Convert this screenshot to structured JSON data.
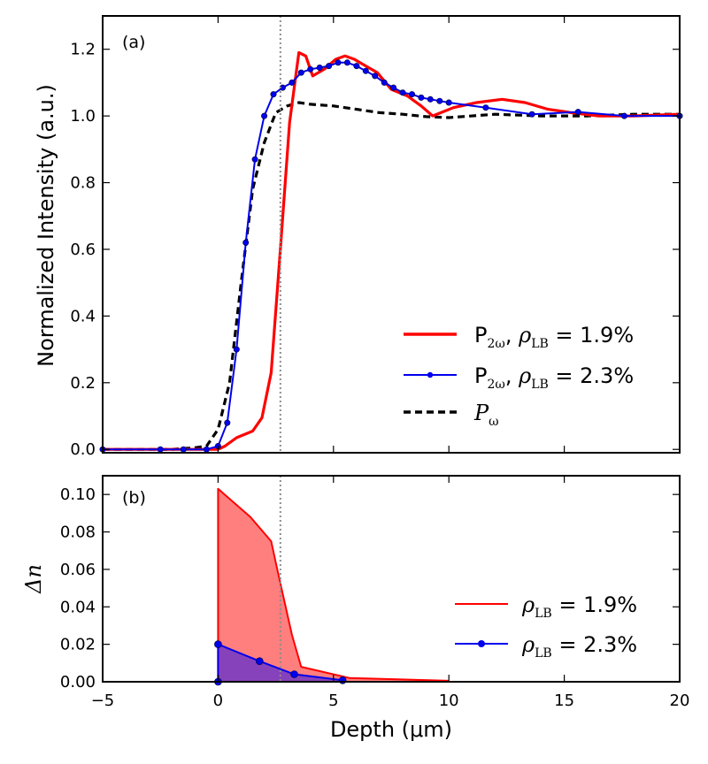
{
  "figure": {
    "shared_xlabel": "Depth (μm)",
    "reference_line_depth": 2.7
  },
  "chart_data": [
    {
      "type": "line",
      "panel_label": "(a)",
      "ylabel": "Normalized Intensity (a.u.)",
      "xlim": [
        -5,
        20
      ],
      "ylim": [
        -0.01,
        1.3
      ],
      "xticks": [
        -5,
        0,
        5,
        10,
        15,
        20
      ],
      "yticks": [
        0.0,
        0.2,
        0.4,
        0.6,
        0.8,
        1.0,
        1.2
      ],
      "ytick_labels": [
        "0.0",
        "0.2",
        "0.4",
        "0.6",
        "0.8",
        "1.0",
        "1.2"
      ],
      "legend_position": "lower-right",
      "series": [
        {
          "name": "P2ω, ρLB = 1.9%",
          "legend": {
            "main": "P",
            "sub": "2ω",
            "sep": ", ",
            "rho": "ρ",
            "rho_sub": "LB",
            "rest": " = 1.9%"
          },
          "color": "#ff0000",
          "style": "solid-thick",
          "x": [
            -5,
            -2,
            -0.5,
            0,
            0.3,
            0.8,
            1.5,
            1.9,
            2.3,
            2.7,
            3.1,
            3.5,
            3.8,
            4.1,
            4.6,
            5.1,
            5.5,
            5.9,
            6.4,
            6.9,
            7.5,
            8.2,
            8.8,
            9.3,
            10.2,
            11.2,
            12.3,
            13.3,
            14.3,
            15.3,
            16.5,
            18,
            20
          ],
          "y": [
            0,
            0,
            0,
            0,
            0.01,
            0.035,
            0.055,
            0.095,
            0.23,
            0.6,
            0.98,
            1.19,
            1.18,
            1.12,
            1.14,
            1.17,
            1.18,
            1.17,
            1.15,
            1.13,
            1.08,
            1.06,
            1.03,
            1.0,
            1.025,
            1.04,
            1.05,
            1.04,
            1.02,
            1.01,
            1.0,
            1.0,
            1.005
          ]
        },
        {
          "name": "P2ω, ρLB = 2.3%",
          "legend": {
            "main": "P",
            "sub": "2ω",
            "sep": ", ",
            "rho": "ρ",
            "rho_sub": "LB",
            "rest": " = 2.3%"
          },
          "color": "#0000ee",
          "style": "solid-markers",
          "x": [
            -5,
            -2.5,
            -1.5,
            -0.5,
            0,
            0.4,
            0.8,
            1.2,
            1.6,
            2.0,
            2.4,
            2.8,
            3.2,
            3.6,
            4.0,
            4.4,
            4.8,
            5.2,
            5.6,
            6.0,
            6.4,
            6.8,
            7.2,
            7.6,
            8.0,
            8.4,
            8.8,
            9.2,
            9.6,
            10.0,
            11.6,
            13.6,
            15.6,
            17.6,
            20
          ],
          "y": [
            0,
            0,
            0,
            0,
            0.01,
            0.08,
            0.3,
            0.62,
            0.87,
            1.0,
            1.065,
            1.085,
            1.1,
            1.13,
            1.14,
            1.145,
            1.15,
            1.16,
            1.16,
            1.15,
            1.135,
            1.12,
            1.1,
            1.085,
            1.07,
            1.065,
            1.055,
            1.05,
            1.045,
            1.04,
            1.025,
            1.005,
            1.012,
            1.0,
            1.0
          ]
        },
        {
          "name": "Pω",
          "legend": {
            "main": "P",
            "sub": "ω",
            "sep": "",
            "rho": "",
            "rho_sub": "",
            "rest": ""
          },
          "color": "#000000",
          "style": "dashed",
          "x": [
            -5,
            -2,
            -1,
            -0.5,
            0,
            0.5,
            1,
            1.5,
            2,
            2.5,
            3,
            3.5,
            4,
            5,
            6,
            7,
            8,
            9,
            10,
            12,
            14,
            16,
            18,
            20
          ],
          "y": [
            0,
            0,
            0.005,
            0.01,
            0.06,
            0.2,
            0.5,
            0.78,
            0.92,
            1.01,
            1.03,
            1.04,
            1.035,
            1.03,
            1.02,
            1.01,
            1.005,
            0.998,
            0.995,
            1.005,
            1.0,
            1.0,
            1.005,
            1.005
          ]
        }
      ]
    },
    {
      "type": "area",
      "panel_label": "(b)",
      "ylabel": "Δn",
      "xlabel": "Depth (μm)",
      "xlim": [
        -5,
        20
      ],
      "ylim": [
        0,
        0.11
      ],
      "xticks": [
        -5,
        0,
        5,
        10,
        15,
        20
      ],
      "xtick_labels": [
        "−5",
        "0",
        "5",
        "10",
        "15",
        "20"
      ],
      "yticks": [
        0.0,
        0.02,
        0.04,
        0.06,
        0.08,
        0.1
      ],
      "ytick_labels": [
        "0.00",
        "0.02",
        "0.04",
        "0.06",
        "0.08",
        "0.10"
      ],
      "legend_position": "lower-right",
      "series": [
        {
          "name": "ρLB = 1.9%",
          "legend": {
            "rho": "ρ",
            "rho_sub": "LB",
            "rest": " = 1.9%"
          },
          "color": "#ff0000",
          "fill": "#ff7f7f",
          "style": "solid-fill",
          "x": [
            0,
            0,
            1.4,
            2.3,
            2.6,
            3.2,
            3.6,
            5.7,
            10
          ],
          "y": [
            0,
            0.103,
            0.088,
            0.075,
            0.058,
            0.025,
            0.008,
            0.002,
            0.0005
          ]
        },
        {
          "name": "ρLB = 2.3%",
          "legend": {
            "rho": "ρ",
            "rho_sub": "LB",
            "rest": " = 2.3%"
          },
          "color": "#0000ee",
          "fill": "#7f3fbf",
          "style": "solid-markers-fill",
          "x": [
            0,
            0,
            1.8,
            3.3,
            5.4
          ],
          "y": [
            0,
            0.02,
            0.011,
            0.004,
            0.0008
          ],
          "markers_x": [
            0,
            0,
            1.8,
            3.3,
            5.4
          ],
          "markers_y": [
            0,
            0.02,
            0.011,
            0.004,
            0.0008
          ]
        }
      ]
    }
  ]
}
